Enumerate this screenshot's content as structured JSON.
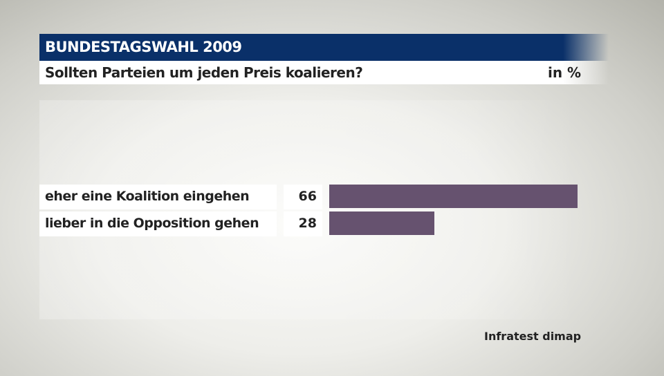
{
  "header": {
    "title": "BUNDESTAGSWAHL 2009",
    "question": "Sollten Parteien um jeden Preis koalieren?",
    "unit": "in %"
  },
  "source": "Infratest dimap",
  "chart_data": {
    "type": "bar",
    "orientation": "horizontal",
    "title": "Sollten Parteien um jeden Preis koalieren?",
    "categories": [
      "eher eine Koalition eingehen",
      "lieber in die Opposition gehen"
    ],
    "values": [
      66,
      28
    ],
    "value_labels": [
      "66",
      "28"
    ],
    "unit": "in %",
    "bar_color": "#66526f",
    "header_color": "#0a3069",
    "grid": false
  }
}
